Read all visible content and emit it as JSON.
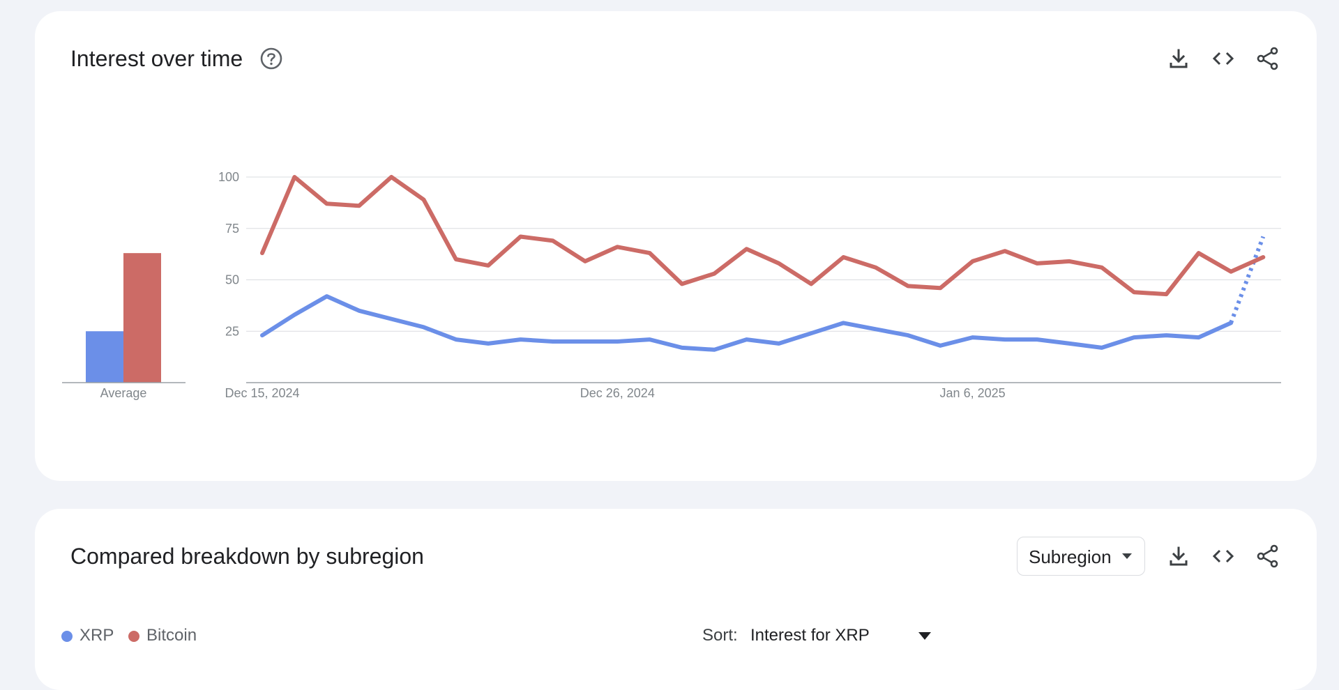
{
  "card1": {
    "title": "Interest over time",
    "actions": [
      "download-icon",
      "embed-code-icon",
      "share-icon"
    ]
  },
  "card2": {
    "title": "Compared breakdown by subregion",
    "dropdown_value": "Subregion",
    "legend": [
      {
        "label": "XRP",
        "color": "#6b8fe8"
      },
      {
        "label": "Bitcoin",
        "color": "#cc6b66"
      }
    ],
    "sort_label": "Sort:",
    "sort_value": "Interest for XRP"
  },
  "chart_data": {
    "type": "line",
    "y_ticks": [
      25,
      50,
      75,
      100
    ],
    "ylim": [
      0,
      100
    ],
    "x_tick_labels": [
      {
        "label": "Dec 15, 2024",
        "index": 0
      },
      {
        "label": "Dec 26, 2024",
        "index": 11
      },
      {
        "label": "Jan 6, 2025",
        "index": 22
      }
    ],
    "average_label": "Average",
    "averages": [
      {
        "name": "XRP",
        "value": 25,
        "color": "#6b8fe8"
      },
      {
        "name": "Bitcoin",
        "value": 63,
        "color": "#cc6b66"
      }
    ],
    "series": [
      {
        "name": "XRP",
        "color": "#6b8fe8",
        "values": [
          23,
          33,
          42,
          35,
          31,
          27,
          21,
          19,
          21,
          20,
          20,
          20,
          21,
          17,
          16,
          21,
          19,
          24,
          29,
          26,
          23,
          18,
          22,
          21,
          21,
          19,
          17,
          22,
          23,
          22,
          29,
          71
        ],
        "partial_from_index": 30
      },
      {
        "name": "Bitcoin",
        "color": "#cc6b66",
        "values": [
          63,
          100,
          87,
          86,
          100,
          89,
          60,
          57,
          71,
          69,
          59,
          66,
          63,
          48,
          53,
          65,
          58,
          48,
          61,
          56,
          47,
          46,
          59,
          64,
          58,
          59,
          56,
          44,
          43,
          63,
          54,
          61
        ],
        "partial_from_index": null
      }
    ],
    "grid": true
  }
}
